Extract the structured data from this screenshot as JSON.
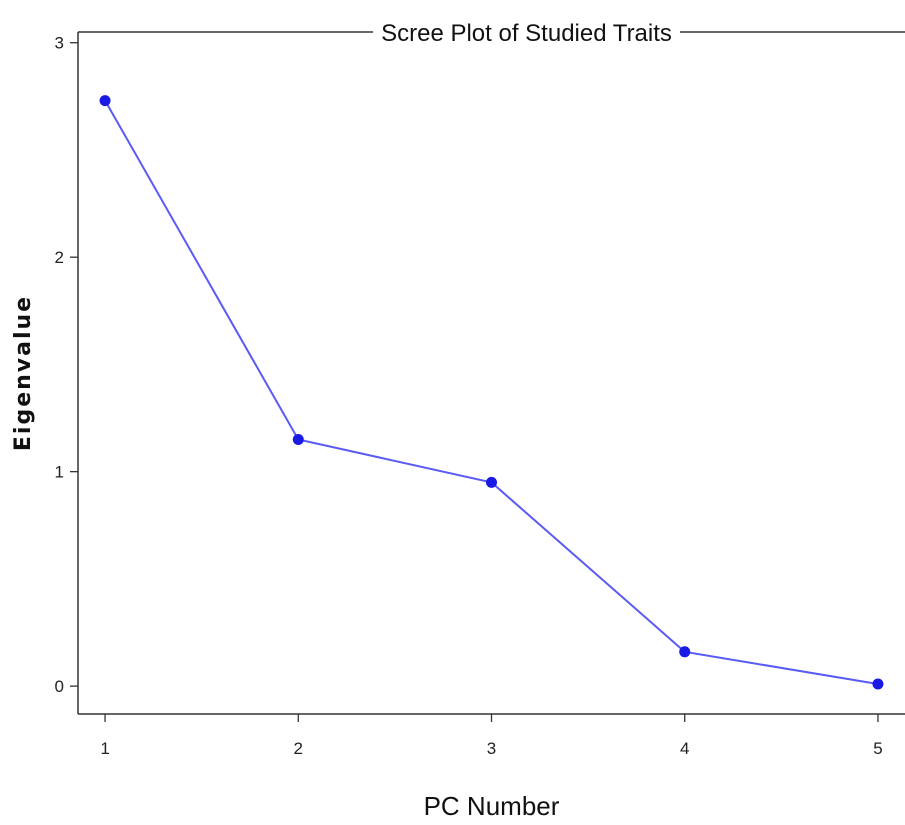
{
  "chart_data": {
    "type": "line",
    "title": "Scree Plot of Studied Traits",
    "xlabel": "PC Number",
    "ylabel": "Eigenvalue",
    "x": [
      1,
      2,
      3,
      4,
      5
    ],
    "x_tick_labels": [
      "1",
      "2",
      "3",
      "4",
      "5"
    ],
    "y_ticks": [
      0,
      1,
      2,
      3
    ],
    "y_tick_labels": [
      "0",
      "1",
      "2",
      "3"
    ],
    "xlim": [
      0.86,
      5.14
    ],
    "ylim": [
      -0.13,
      3.05
    ],
    "grid": false,
    "legend": "none",
    "series": [
      {
        "values": [
          2.73,
          1.15,
          0.95,
          0.16,
          0.01
        ],
        "color": "#5a5af5",
        "marker_color": "#1a1ae6"
      }
    ]
  }
}
